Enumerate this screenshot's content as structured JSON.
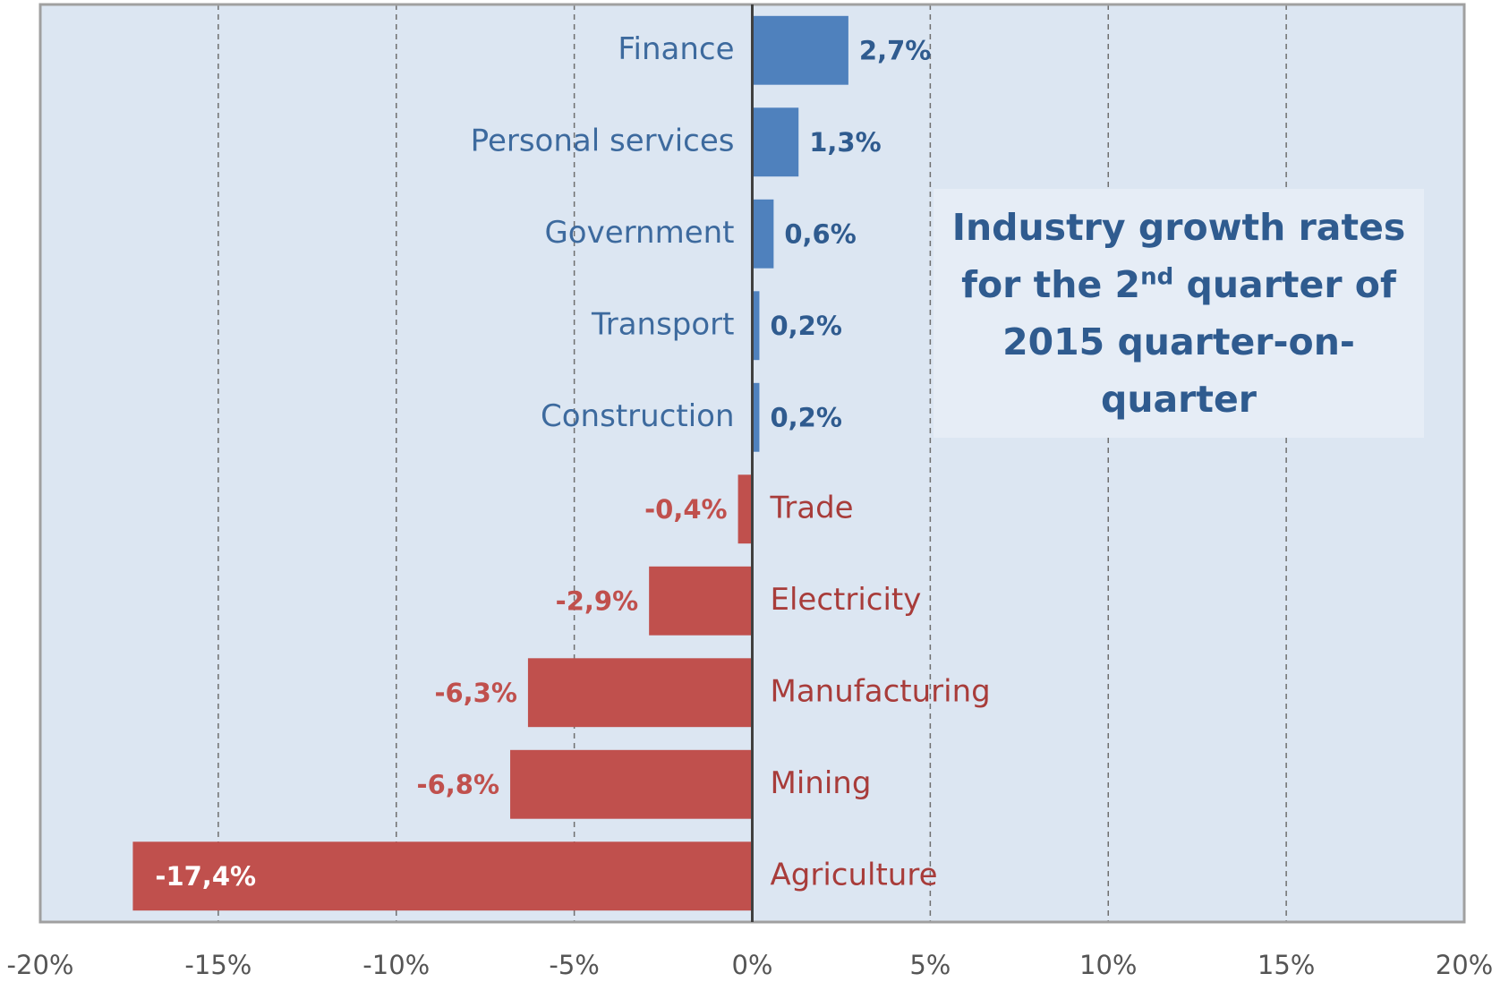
{
  "chart_data": {
    "type": "bar",
    "orientation": "horizontal",
    "title": {
      "text": "Industry growth rates for the 2",
      "superscript": "nd",
      "text_end": "quarter of 2015 quarter-on-quarter"
    },
    "categories": [
      "Finance",
      "Personal services",
      "Government",
      "Transport",
      "Construction",
      "Trade",
      "Electricity",
      "Manufacturing",
      "Mining",
      "Agriculture"
    ],
    "values": [
      2.7,
      1.3,
      0.6,
      0.2,
      0.2,
      -0.4,
      -2.9,
      -6.3,
      -6.8,
      -17.4
    ],
    "value_labels": [
      "2,7%",
      "1,3%",
      "0,6%",
      "0,2%",
      "0,2%",
      "-0,4%",
      "-2,9%",
      "-6,3%",
      "-6,8%",
      "-17,4%"
    ],
    "positive_color": "#4f81bd",
    "negative_color": "#c0504d",
    "xlim": [
      -20,
      20
    ],
    "xticks": [
      {
        "value": -20,
        "label": "-20%"
      },
      {
        "value": -15,
        "label": "-15%"
      },
      {
        "value": -10,
        "label": "-10%"
      },
      {
        "value": -5,
        "label": "-5%"
      },
      {
        "value": 0,
        "label": "0%"
      },
      {
        "value": 5,
        "label": "5%"
      },
      {
        "value": 10,
        "label": "10%"
      },
      {
        "value": 15,
        "label": "15%"
      },
      {
        "value": 20,
        "label": "20%"
      }
    ],
    "grid": true
  }
}
